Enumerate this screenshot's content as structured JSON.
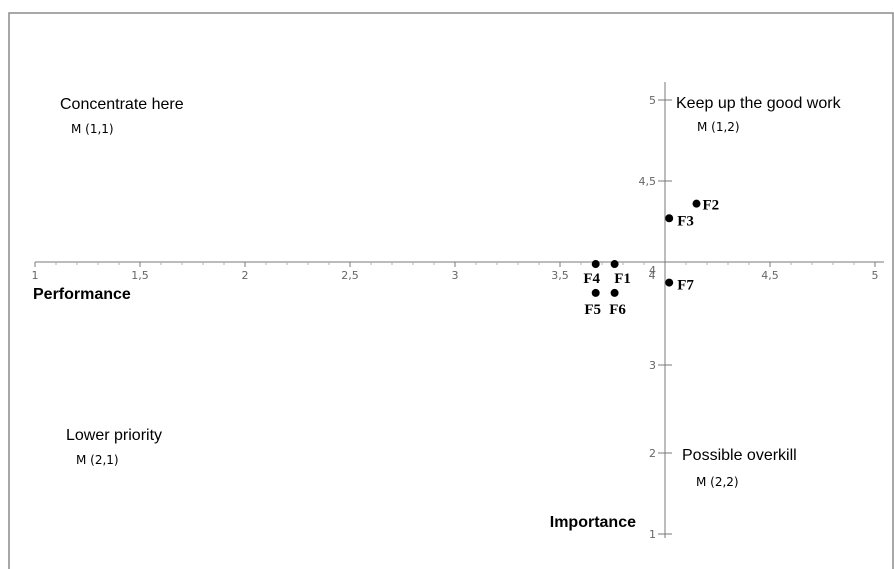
{
  "chart_data": {
    "type": "scatter",
    "title": "",
    "xlabel": "Performance",
    "ylabel": "Importance",
    "xlim": [
      1,
      5
    ],
    "ylim": [
      1,
      5
    ],
    "x_axis_crosses_at_y": 4,
    "y_axis_crosses_at_x": 4,
    "x_ticks": [
      "1",
      "1,5",
      "2",
      "2,5",
      "3",
      "3,5",
      "4",
      "4,5",
      "5"
    ],
    "y_ticks": [
      "1",
      "2",
      "3",
      "4",
      "4,5",
      "5"
    ],
    "grid": false,
    "points": [
      {
        "label": "F1",
        "x": 3.76,
        "y": 3.98
      },
      {
        "label": "F2",
        "x": 4.15,
        "y": 4.36
      },
      {
        "label": "F3",
        "x": 4.02,
        "y": 4.27
      },
      {
        "label": "F4",
        "x": 3.67,
        "y": 3.98
      },
      {
        "label": "F5",
        "x": 3.67,
        "y": 3.7
      },
      {
        "label": "F6",
        "x": 3.76,
        "y": 3.7
      },
      {
        "label": "F7",
        "x": 4.02,
        "y": 3.8
      }
    ],
    "quadrants": [
      {
        "title": "Concentrate here",
        "subtitle": "M (1,1)",
        "position": "top-left"
      },
      {
        "title": "Keep up the good work",
        "subtitle": "M (1,2)",
        "position": "top-right"
      },
      {
        "title": "Lower priority",
        "subtitle": "M (2,1)",
        "position": "bottom-left"
      },
      {
        "title": "Possible overkill",
        "subtitle": "M (2,2)",
        "position": "bottom-right"
      }
    ]
  }
}
